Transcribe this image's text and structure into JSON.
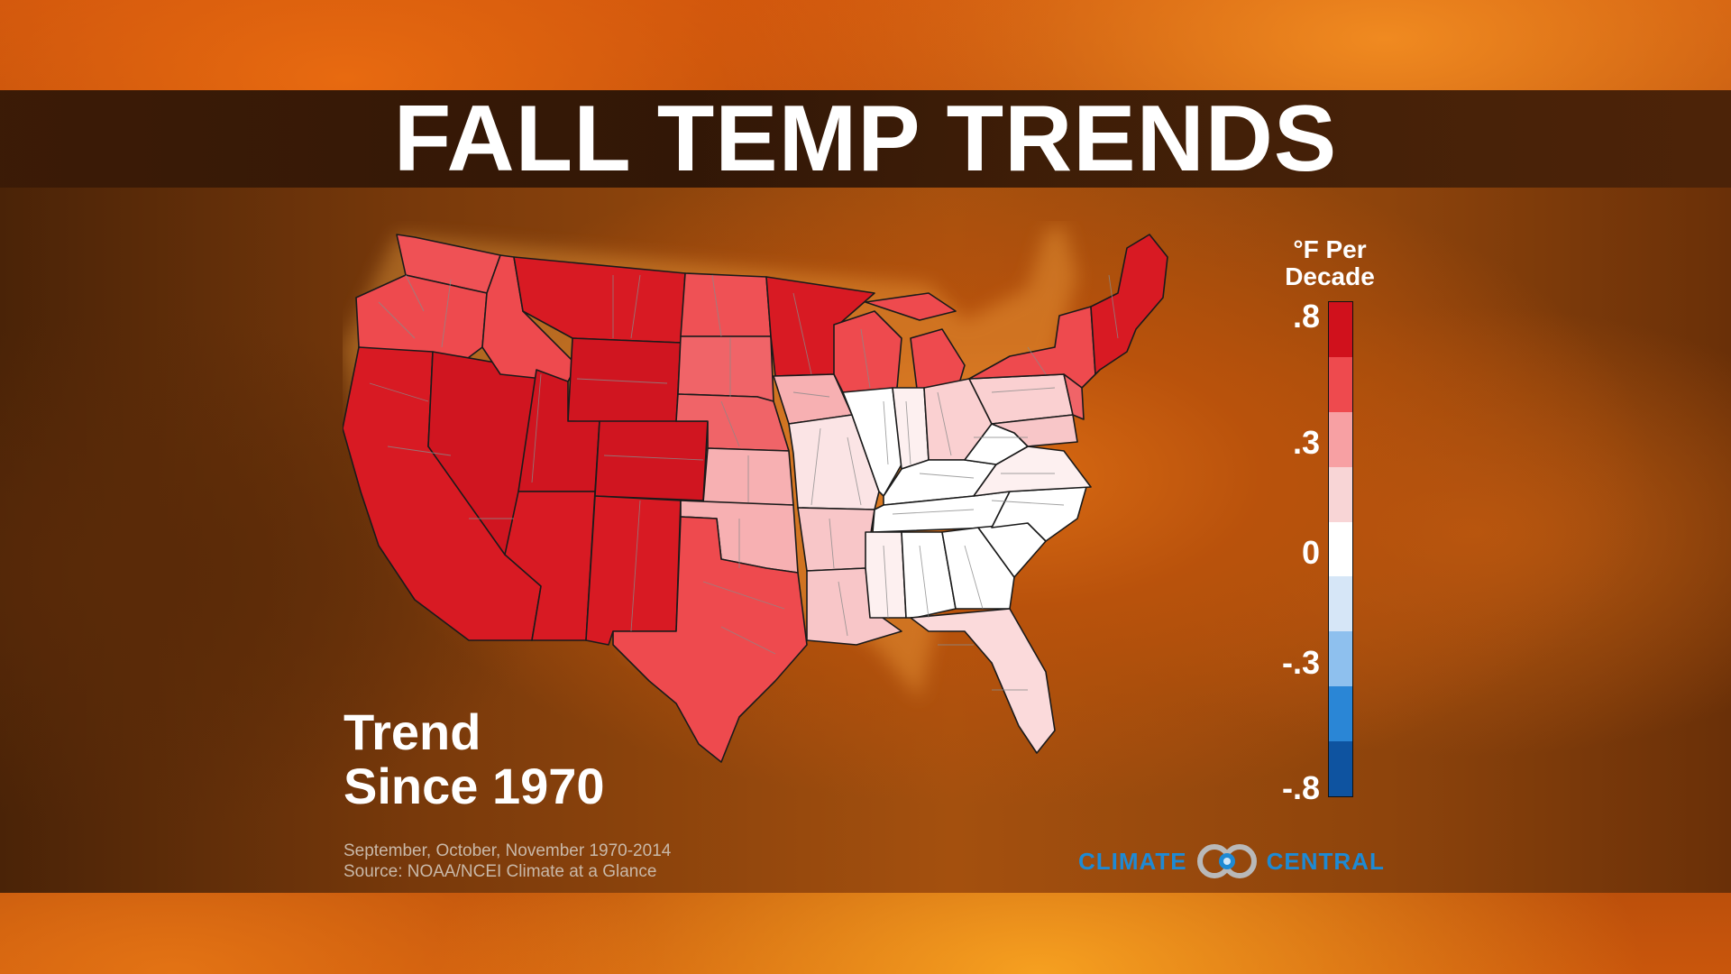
{
  "title": "FALL TEMP TRENDS",
  "trend_label": {
    "line1": "Trend",
    "line2": "Since 1970"
  },
  "legend": {
    "title_line1": "°F Per",
    "title_line2": "Decade",
    "ticks": [
      ".8",
      ".3",
      "0",
      "-.3",
      "-.8"
    ],
    "colors": [
      "#d0111c",
      "#ee4a4e",
      "#f7a0a3",
      "#f8d5d6",
      "#ffffff",
      "#d6e6f7",
      "#8ec0ee",
      "#2a86d6",
      "#0e53a0"
    ]
  },
  "footer": {
    "line1": "September, October, November 1970-2014",
    "line2": "Source: NOAA/NCEI Climate at a Glance"
  },
  "brand": {
    "left": "CLIMATE",
    "right": "CENTRAL",
    "color": "#1e8ad4"
  },
  "map": {
    "region": "Contiguous United States",
    "regions": [
      {
        "name": "Washington",
        "trend_bin": "0.3-0.55"
      },
      {
        "name": "Oregon",
        "trend_bin": "0.3-0.55"
      },
      {
        "name": "California",
        "trend_bin": ">0.55"
      },
      {
        "name": "Nevada",
        "trend_bin": ">0.55"
      },
      {
        "name": "Idaho",
        "trend_bin": "0.3-0.55"
      },
      {
        "name": "Montana",
        "trend_bin": ">0.55"
      },
      {
        "name": "Wyoming",
        "trend_bin": ">0.55"
      },
      {
        "name": "Utah",
        "trend_bin": ">0.55"
      },
      {
        "name": "Arizona",
        "trend_bin": ">0.55"
      },
      {
        "name": "Colorado",
        "trend_bin": ">0.55"
      },
      {
        "name": "New Mexico",
        "trend_bin": ">0.55"
      },
      {
        "name": "North Dakota",
        "trend_bin": "0.3-0.55"
      },
      {
        "name": "South Dakota",
        "trend_bin": "0.3-0.55"
      },
      {
        "name": "Nebraska",
        "trend_bin": "0.3-0.55"
      },
      {
        "name": "Kansas",
        "trend_bin": "0.1-0.3"
      },
      {
        "name": "Oklahoma",
        "trend_bin": "0.1-0.3"
      },
      {
        "name": "Texas",
        "trend_bin": "0.3-0.55"
      },
      {
        "name": "Minnesota",
        "trend_bin": ">0.55"
      },
      {
        "name": "Iowa",
        "trend_bin": "0.1-0.3"
      },
      {
        "name": "Missouri",
        "trend_bin": "0-0.1"
      },
      {
        "name": "Arkansas",
        "trend_bin": "0.1-0.3"
      },
      {
        "name": "Louisiana",
        "trend_bin": "0.1-0.3"
      },
      {
        "name": "Wisconsin",
        "trend_bin": "0.3-0.55"
      },
      {
        "name": "Michigan",
        "trend_bin": "0.3-0.55"
      },
      {
        "name": "Illinois",
        "trend_bin": "0-0.1"
      },
      {
        "name": "Indiana",
        "trend_bin": "0-0.1"
      },
      {
        "name": "Ohio",
        "trend_bin": "0.1-0.3"
      },
      {
        "name": "Kentucky",
        "trend_bin": "0-0.1"
      },
      {
        "name": "Tennessee",
        "trend_bin": "0-0.1"
      },
      {
        "name": "Mississippi",
        "trend_bin": "0-0.1"
      },
      {
        "name": "Alabama",
        "trend_bin": "0-0.1"
      },
      {
        "name": "Georgia",
        "trend_bin": "0-0.1"
      },
      {
        "name": "Florida",
        "trend_bin": "0.1-0.3"
      },
      {
        "name": "South Carolina",
        "trend_bin": "0-0.1"
      },
      {
        "name": "North Carolina",
        "trend_bin": "0-0.1"
      },
      {
        "name": "Virginia",
        "trend_bin": "0-0.1"
      },
      {
        "name": "West Virginia",
        "trend_bin": "0-0.1"
      },
      {
        "name": "Pennsylvania",
        "trend_bin": "0.1-0.3"
      },
      {
        "name": "New York",
        "trend_bin": "0.3-0.55"
      },
      {
        "name": "Maryland",
        "trend_bin": "0.1-0.3"
      },
      {
        "name": "New Jersey",
        "trend_bin": "0.3-0.55"
      },
      {
        "name": "New England",
        "trend_bin": ">0.55"
      }
    ]
  }
}
